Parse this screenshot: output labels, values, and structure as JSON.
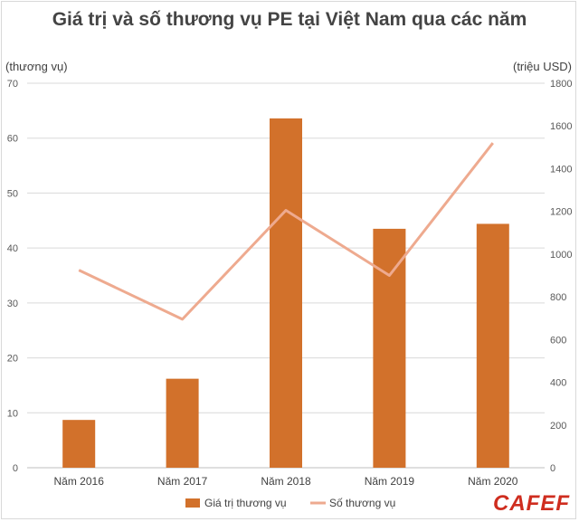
{
  "chart_data": {
    "type": "bar",
    "title": "Giá trị và số thương vụ PE tại Việt Nam qua các năm",
    "ylabel_left": "(thương vụ)",
    "ylabel_right": "(triệu USD)",
    "categories": [
      "Năm 2016",
      "Năm 2017",
      "Năm 2018",
      "Năm 2019",
      "Năm 2020"
    ],
    "series": [
      {
        "name": "Giá trị thương vụ",
        "type": "bar",
        "axis": "left",
        "color": "#d2712b",
        "values": [
          8.7,
          16.2,
          63.6,
          43.5,
          44.4
        ]
      },
      {
        "name": "Số thương vụ",
        "type": "line",
        "axis": "right",
        "color": "#eeaa8f",
        "values": [
          925,
          695,
          1205,
          900,
          1520
        ]
      }
    ],
    "y_left": {
      "min": 0,
      "max": 70,
      "ticks": [
        0,
        10,
        20,
        30,
        40,
        50,
        60,
        70
      ]
    },
    "y_right": {
      "min": 0,
      "max": 1800,
      "ticks": [
        0,
        200,
        400,
        600,
        800,
        1000,
        1200,
        1400,
        1600,
        1800
      ]
    },
    "grid": true,
    "legend_position": "bottom"
  },
  "logo": "CAFEF"
}
